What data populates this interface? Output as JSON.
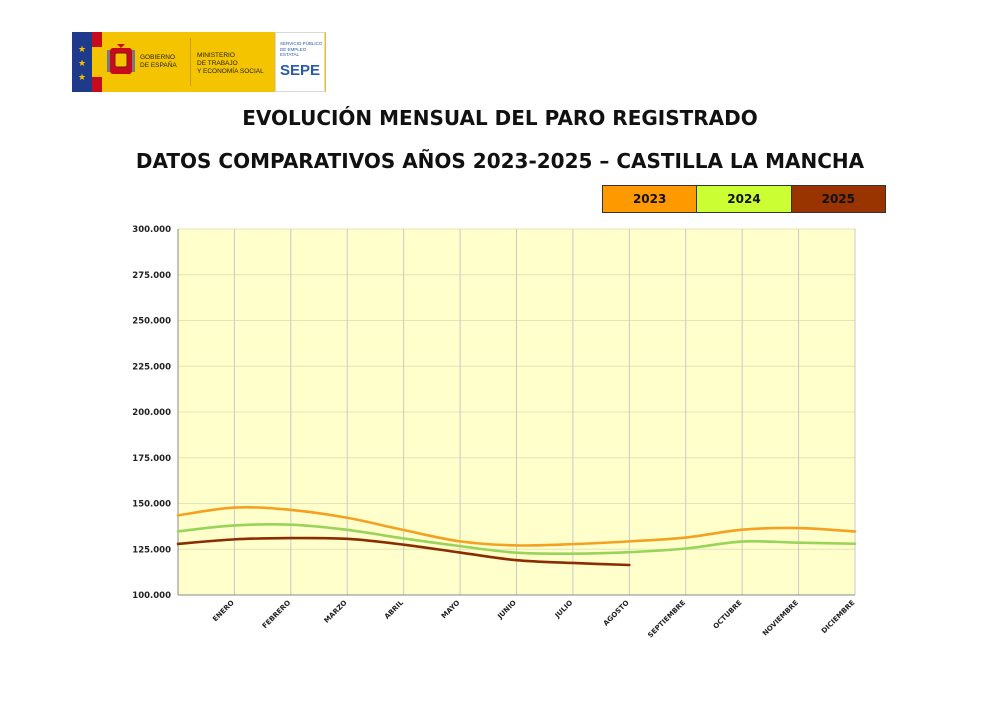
{
  "logo": {
    "gobierno_line1": "GOBIERNO",
    "gobierno_line2": "DE ESPAÑA",
    "ministerio_line1": "MINISTERIO",
    "ministerio_line2": "DE TRABAJO",
    "ministerio_line3": "Y ECONOMÍA SOCIAL",
    "sepe_small1": "SERVICIO PÚBLICO",
    "sepe_small2": "DE EMPLEO ESTATAL",
    "sepe_big": "SEPE",
    "colors": {
      "yellow": "#f5c400",
      "eu_blue": "#1f3a8a",
      "red": "#c60b1e",
      "sepe_blue": "#2a5ab0"
    }
  },
  "header": {
    "title": "EVOLUCIÓN MENSUAL DEL PARO REGISTRADO",
    "subtitle": "DATOS COMPARATIVOS AÑOS 2023-2025 – CASTILLA LA MANCHA"
  },
  "legend": [
    {
      "label": "2023",
      "color": "#ff9900"
    },
    {
      "label": "2024",
      "color": "#ccff33"
    },
    {
      "label": "2025",
      "color": "#993300"
    }
  ],
  "chart_data": {
    "type": "line",
    "categories": [
      "ENERO",
      "FEBRERO",
      "MARZO",
      "ABRIL",
      "MAYO",
      "JUNIO",
      "JULIO",
      "AGOSTO",
      "SEPTIEMBRE",
      "OCTUBRE",
      "NOVIEMBRE",
      "DICIEMBRE"
    ],
    "y_ticks": [
      "100.000",
      "125.000",
      "150.000",
      "175.000",
      "200.000",
      "225.000",
      "250.000",
      "275.000",
      "300.000"
    ],
    "ylim": [
      100000,
      300000
    ],
    "grid": true,
    "plot_background": "#ffffcc",
    "legend_position": "top-right",
    "series": [
      {
        "name": "2023",
        "color": "#f5a020",
        "start_value": 143500,
        "values": [
          147800,
          146500,
          142200,
          135500,
          129300,
          127100,
          127800,
          129300,
          131400,
          135700,
          136600,
          134700
        ]
      },
      {
        "name": "2024",
        "color": "#9ad35a",
        "start_value": 134800,
        "values": [
          138000,
          138400,
          135600,
          130900,
          126700,
          123100,
          122600,
          123400,
          125400,
          129200,
          128600,
          128000
        ]
      },
      {
        "name": "2025",
        "color": "#8b2d00",
        "start_value": 127900,
        "values": [
          130400,
          131100,
          130700,
          127500,
          123200,
          119000,
          117500,
          116400,
          null,
          null,
          null,
          null
        ]
      }
    ]
  }
}
